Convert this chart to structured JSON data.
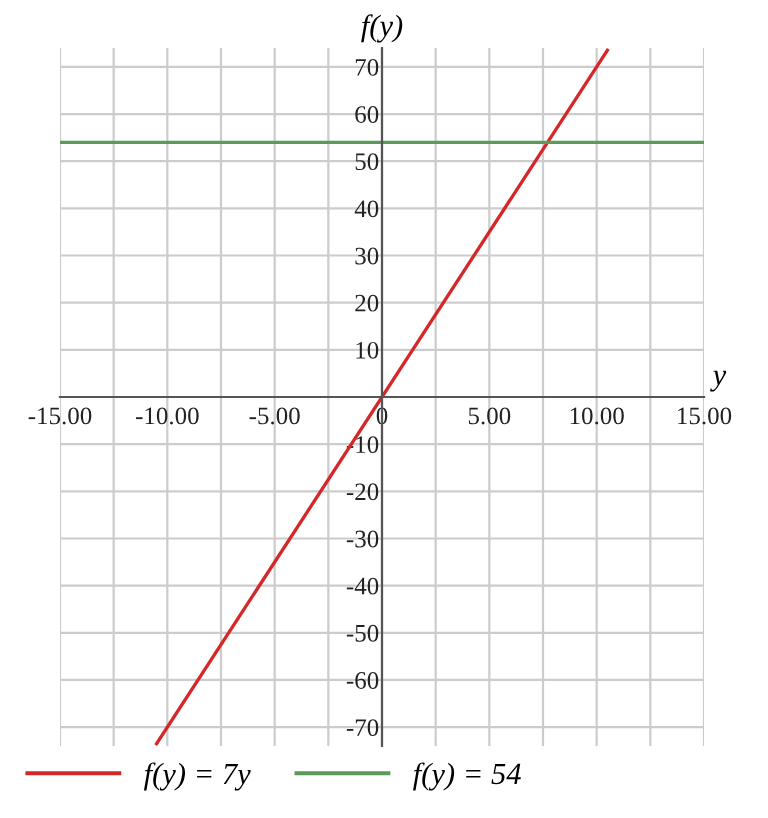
{
  "chart_data": {
    "type": "line",
    "xlabel": "y",
    "ylabel": "f(y)",
    "xlim": [
      -15,
      15
    ],
    "ylim": [
      -74,
      74
    ],
    "xticks": [
      {
        "value": -15,
        "label": "-15.00"
      },
      {
        "value": -12.5,
        "label": null
      },
      {
        "value": -10,
        "label": "-10.00"
      },
      {
        "value": -7.5,
        "label": null
      },
      {
        "value": -5,
        "label": "-5.00"
      },
      {
        "value": -2.5,
        "label": null
      },
      {
        "value": 0,
        "label": "0"
      },
      {
        "value": 2.5,
        "label": null
      },
      {
        "value": 5,
        "label": "5.00"
      },
      {
        "value": 7.5,
        "label": null
      },
      {
        "value": 10,
        "label": "10.00"
      },
      {
        "value": 12.5,
        "label": null
      },
      {
        "value": 15,
        "label": "15.00"
      }
    ],
    "yticks": [
      -70,
      -60,
      -50,
      -40,
      -30,
      -20,
      -10,
      {
        "value": 0,
        "label": null
      },
      10,
      20,
      30,
      40,
      50,
      60,
      70
    ],
    "grid": true,
    "legend": "bottom",
    "series": [
      {
        "name": "f(y) = 7y",
        "color": "#d62728",
        "x": [
          -10.5,
          10.5
        ],
        "values": [
          -73.5,
          73.5
        ]
      },
      {
        "name": "f(y) = 54",
        "color": "#5a9a5a",
        "x": [
          -15,
          15
        ],
        "values": [
          54,
          54
        ]
      }
    ]
  }
}
